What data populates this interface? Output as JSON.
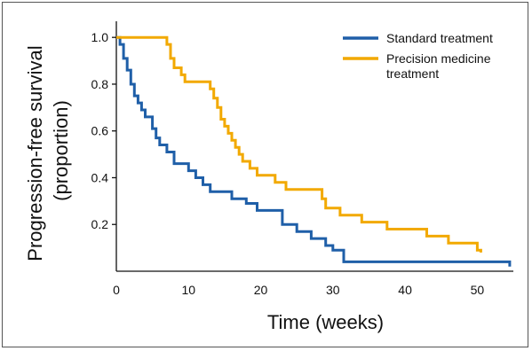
{
  "chart_data": {
    "type": "line",
    "xlabel": "Time (weeks)",
    "ylabel_line1": "Progression-free survival",
    "ylabel_line2": "(proportion)",
    "xlim": [
      0,
      55
    ],
    "ylim": [
      0,
      1.05
    ],
    "x_ticks": [
      0,
      10,
      20,
      30,
      40,
      50
    ],
    "x_tick_labels": [
      "0",
      "10",
      "20",
      "30",
      "40",
      "50"
    ],
    "y_ticks": [
      0.2,
      0.4,
      0.6,
      0.8,
      1.0
    ],
    "y_tick_labels": [
      "0.2",
      "0.4",
      "0.6",
      "0.8",
      "1.0"
    ],
    "grid": false,
    "legend_position": "top-right",
    "series": [
      {
        "name": "Standard treatment",
        "name_lines": [
          "Standard treatment"
        ],
        "color": "#1f5fa8",
        "step": true,
        "points": [
          [
            0,
            1.0
          ],
          [
            0.5,
            0.97
          ],
          [
            1.0,
            0.91
          ],
          [
            1.5,
            0.86
          ],
          [
            2.0,
            0.8
          ],
          [
            2.5,
            0.75
          ],
          [
            3.0,
            0.72
          ],
          [
            3.5,
            0.69
          ],
          [
            4.0,
            0.66
          ],
          [
            5.0,
            0.61
          ],
          [
            5.5,
            0.57
          ],
          [
            6.0,
            0.54
          ],
          [
            7.0,
            0.51
          ],
          [
            8.0,
            0.46
          ],
          [
            10.0,
            0.43
          ],
          [
            11.0,
            0.4
          ],
          [
            12.0,
            0.37
          ],
          [
            13.0,
            0.34
          ],
          [
            16.0,
            0.31
          ],
          [
            18.0,
            0.29
          ],
          [
            19.5,
            0.26
          ],
          [
            23.0,
            0.2
          ],
          [
            25.0,
            0.17
          ],
          [
            27.0,
            0.14
          ],
          [
            29.0,
            0.11
          ],
          [
            30.0,
            0.09
          ],
          [
            31.5,
            0.04
          ],
          [
            54.5,
            0.02
          ]
        ]
      },
      {
        "name": "Precision medicine treatment",
        "name_lines": [
          "Precision medicine",
          "treatment"
        ],
        "color": "#f2a900",
        "step": true,
        "points": [
          [
            0,
            1.0
          ],
          [
            7.0,
            0.97
          ],
          [
            7.5,
            0.91
          ],
          [
            8.0,
            0.87
          ],
          [
            9.0,
            0.84
          ],
          [
            9.5,
            0.81
          ],
          [
            13.0,
            0.78
          ],
          [
            13.5,
            0.74
          ],
          [
            14.0,
            0.7
          ],
          [
            14.5,
            0.65
          ],
          [
            15.0,
            0.62
          ],
          [
            15.5,
            0.59
          ],
          [
            16.0,
            0.56
          ],
          [
            16.5,
            0.53
          ],
          [
            17.0,
            0.5
          ],
          [
            17.5,
            0.47
          ],
          [
            18.5,
            0.44
          ],
          [
            19.5,
            0.41
          ],
          [
            22.0,
            0.38
          ],
          [
            23.5,
            0.35
          ],
          [
            28.5,
            0.31
          ],
          [
            29.0,
            0.27
          ],
          [
            31.0,
            0.24
          ],
          [
            34.0,
            0.21
          ],
          [
            37.5,
            0.18
          ],
          [
            43.0,
            0.15
          ],
          [
            46.0,
            0.12
          ],
          [
            50.0,
            0.09
          ],
          [
            50.5,
            0.08
          ]
        ]
      }
    ]
  }
}
